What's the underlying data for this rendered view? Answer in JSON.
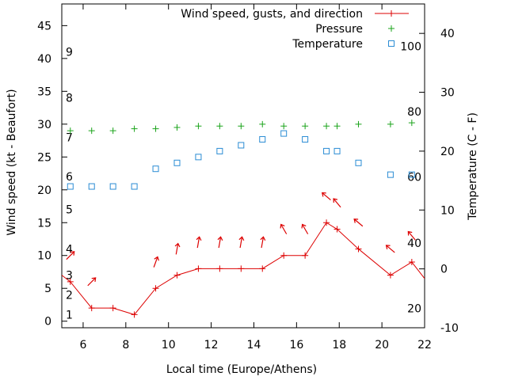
{
  "chart_data": {
    "type": "line",
    "xlabel": "Local time (Europe/Athens)",
    "ylabel": "Wind speed (kt - Beaufort)",
    "y2label": "Temperature (C - F)",
    "xlim": [
      5,
      22
    ],
    "ylim": [
      -1,
      48.3
    ],
    "y2lim": [
      -10,
      45
    ],
    "x_ticks": [
      6,
      8,
      10,
      12,
      14,
      16,
      18,
      20,
      22
    ],
    "y_ticks": [
      0,
      5,
      10,
      15,
      20,
      25,
      30,
      35,
      40,
      45
    ],
    "y2_ticks": [
      -10,
      0,
      10,
      20,
      30,
      40
    ],
    "beaufort_labels": [
      {
        "text": "1",
        "y": 1
      },
      {
        "text": "2",
        "y": 4
      },
      {
        "text": "3",
        "y": 7
      },
      {
        "text": "4",
        "y": 11
      },
      {
        "text": "5",
        "y": 17
      },
      {
        "text": "6",
        "y": 22
      },
      {
        "text": "7",
        "y": 28
      },
      {
        "text": "8",
        "y": 34
      },
      {
        "text": "9",
        "y": 41
      }
    ],
    "fahrenheit_labels": [
      {
        "text": "20",
        "c": -6.7
      },
      {
        "text": "40",
        "c": 4.4
      },
      {
        "text": "60",
        "c": 15.6
      },
      {
        "text": "80",
        "c": 26.7
      },
      {
        "text": "100",
        "c": 37.8
      }
    ],
    "legend": [
      {
        "name": "Wind speed, gusts, and direction",
        "color": "#dd0000",
        "marker": "plus-line"
      },
      {
        "name": "Pressure",
        "color": "#1aa31a",
        "marker": "plus"
      },
      {
        "name": "Temperature",
        "color": "#2a8cd4",
        "marker": "square"
      }
    ],
    "series": [
      {
        "name": "Wind speed, gusts, and direction",
        "color": "#dd0000",
        "points": [
          {
            "x": 5.0,
            "y": 7
          },
          {
            "x": 5.4,
            "y": 6
          },
          {
            "x": 6.4,
            "y": 2
          },
          {
            "x": 7.4,
            "y": 2
          },
          {
            "x": 8.4,
            "y": 1
          },
          {
            "x": 9.4,
            "y": 5
          },
          {
            "x": 10.4,
            "y": 7
          },
          {
            "x": 11.4,
            "y": 8
          },
          {
            "x": 12.4,
            "y": 8
          },
          {
            "x": 13.4,
            "y": 8
          },
          {
            "x": 14.4,
            "y": 8
          },
          {
            "x": 15.4,
            "y": 10
          },
          {
            "x": 16.4,
            "y": 10
          },
          {
            "x": 17.4,
            "y": 15
          },
          {
            "x": 17.9,
            "y": 14
          },
          {
            "x": 18.9,
            "y": 11
          },
          {
            "x": 20.4,
            "y": 7
          },
          {
            "x": 21.4,
            "y": 9
          },
          {
            "x": 22.0,
            "y": 6.5
          }
        ]
      },
      {
        "name": "Pressure",
        "color": "#1aa31a",
        "points": [
          {
            "x": 5.4,
            "y": 29.0
          },
          {
            "x": 6.4,
            "y": 29.0
          },
          {
            "x": 7.4,
            "y": 29.0
          },
          {
            "x": 8.4,
            "y": 29.3
          },
          {
            "x": 9.4,
            "y": 29.3
          },
          {
            "x": 10.4,
            "y": 29.5
          },
          {
            "x": 11.4,
            "y": 29.7
          },
          {
            "x": 12.4,
            "y": 29.7
          },
          {
            "x": 13.4,
            "y": 29.7
          },
          {
            "x": 14.4,
            "y": 30.0
          },
          {
            "x": 15.4,
            "y": 29.7
          },
          {
            "x": 16.4,
            "y": 29.7
          },
          {
            "x": 17.4,
            "y": 29.7
          },
          {
            "x": 17.9,
            "y": 29.7
          },
          {
            "x": 18.9,
            "y": 30.0
          },
          {
            "x": 20.4,
            "y": 30.0
          },
          {
            "x": 21.4,
            "y": 30.2
          }
        ]
      },
      {
        "name": "Temperature",
        "color": "#2a8cd4",
        "axis": "right",
        "points": [
          {
            "x": 5.4,
            "y": 14
          },
          {
            "x": 6.4,
            "y": 14
          },
          {
            "x": 7.4,
            "y": 14
          },
          {
            "x": 8.4,
            "y": 14
          },
          {
            "x": 9.4,
            "y": 17
          },
          {
            "x": 10.4,
            "y": 18
          },
          {
            "x": 11.4,
            "y": 19
          },
          {
            "x": 12.4,
            "y": 20
          },
          {
            "x": 13.4,
            "y": 21
          },
          {
            "x": 14.4,
            "y": 22
          },
          {
            "x": 15.4,
            "y": 23
          },
          {
            "x": 16.4,
            "y": 22
          },
          {
            "x": 17.4,
            "y": 20
          },
          {
            "x": 17.9,
            "y": 20
          },
          {
            "x": 18.9,
            "y": 18
          },
          {
            "x": 20.4,
            "y": 16
          },
          {
            "x": 21.4,
            "y": 16
          }
        ]
      }
    ],
    "wind_direction_arrows": [
      {
        "x": 5.4,
        "y": 10,
        "angle": 225
      },
      {
        "x": 6.4,
        "y": 6,
        "angle": 225
      },
      {
        "x": 9.4,
        "y": 1,
        "angle": 200
      },
      {
        "x": 10.4,
        "y": 1,
        "angle": 190
      },
      {
        "x": 11.4,
        "y": 1,
        "angle": 190
      },
      {
        "x": 12.4,
        "y": 1,
        "angle": 190
      },
      {
        "x": 13.4,
        "y": 1,
        "angle": 190
      },
      {
        "x": 14.4,
        "y": 1,
        "angle": 190
      },
      {
        "x": 15.4,
        "y": 1,
        "angle": 150
      },
      {
        "x": 16.4,
        "y": 1,
        "angle": 150
      },
      {
        "x": 17.4,
        "y": 1,
        "angle": 130
      },
      {
        "x": 17.9,
        "y": 1,
        "angle": 140
      },
      {
        "x": 18.9,
        "y": 1,
        "angle": 130
      },
      {
        "x": 20.4,
        "y": 1,
        "angle": 130
      },
      {
        "x": 21.4,
        "y": 1,
        "angle": 140
      }
    ]
  }
}
